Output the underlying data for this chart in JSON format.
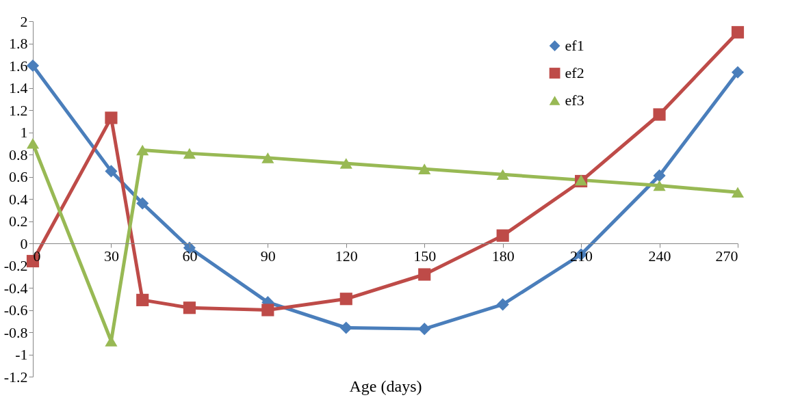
{
  "chart_data": {
    "type": "line",
    "xlabel": "Age (days)",
    "xlim": [
      0,
      270
    ],
    "xticks": [
      0,
      30,
      60,
      90,
      120,
      150,
      180,
      210,
      240,
      270
    ],
    "ylim": [
      -1.2,
      2
    ],
    "yticks": [
      -1.2,
      -1,
      -0.8,
      -0.6,
      -0.4,
      -0.2,
      0,
      0.2,
      0.4,
      0.6,
      0.8,
      1,
      1.2,
      1.4,
      1.6,
      1.8,
      2
    ],
    "grid": false,
    "legend": "top right",
    "line_style": "solid",
    "x": [
      0,
      30,
      42,
      60,
      90,
      120,
      150,
      180,
      210,
      240,
      270
    ],
    "series": [
      {
        "name": "ef1",
        "color": "#4a7ebb",
        "marker": "diamond",
        "values": [
          1.6,
          0.65,
          0.36,
          -0.04,
          -0.53,
          -0.76,
          -0.77,
          -0.55,
          -0.1,
          0.61,
          1.54
        ]
      },
      {
        "name": "ef2",
        "color": "#be4b48",
        "marker": "square",
        "values": [
          -0.16,
          1.13,
          -0.51,
          -0.58,
          -0.6,
          -0.5,
          -0.28,
          0.07,
          0.56,
          1.16,
          1.9
        ]
      },
      {
        "name": "ef3",
        "color": "#98b954",
        "marker": "triangle",
        "values": [
          0.9,
          -0.88,
          0.84,
          0.81,
          0.77,
          0.72,
          0.67,
          0.62,
          0.57,
          0.52,
          0.46
        ]
      }
    ]
  }
}
